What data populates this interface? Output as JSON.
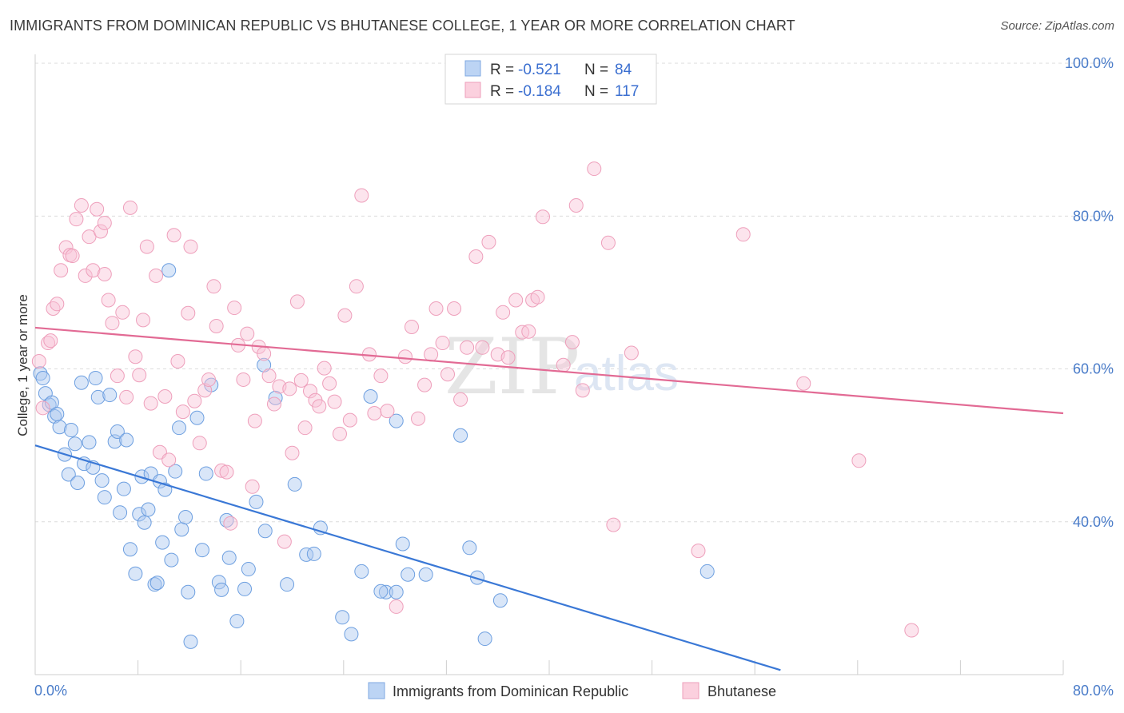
{
  "title": "IMMIGRANTS FROM DOMINICAN REPUBLIC VS BHUTANESE COLLEGE, 1 YEAR OR MORE CORRELATION CHART",
  "source": "Source: ZipAtlas.com",
  "watermark": {
    "zip": "ZIP",
    "atlas": "atlas"
  },
  "colors": {
    "blue": "#6d9fe0",
    "blue_line": "#3a78d6",
    "pink": "#f0a0bc",
    "pink_line": "#e26a94"
  },
  "legend": {
    "r_label": "R =",
    "n_label": "N =",
    "blue": {
      "r": "-0.521",
      "n": "84"
    },
    "pink": {
      "r": "-0.184",
      "n": "117"
    }
  },
  "bottom_legend": {
    "blue_label": "Immigrants from Dominican Republic",
    "pink_label": "Bhutanese"
  },
  "chart_data": {
    "type": "scatter",
    "title": "IMMIGRANTS FROM DOMINICAN REPUBLIC VS BHUTANESE COLLEGE, 1 YEAR OR MORE CORRELATION CHART",
    "xlabel": "",
    "ylabel": "College, 1 year or more",
    "xlim": [
      0,
      80
    ],
    "ylim": [
      20,
      102
    ],
    "x_tick_labels": [
      "0.0%",
      "80.0%"
    ],
    "y_ticks": [
      40,
      60,
      80,
      100
    ],
    "y_tick_labels": [
      "40.0%",
      "60.0%",
      "80.0%",
      "100.0%"
    ],
    "grid": true,
    "legend_position": "top-center",
    "series": [
      {
        "name": "Immigrants from Dominican Republic",
        "color": "#6d9fe0",
        "trend": {
          "x": [
            0,
            58
          ],
          "y": [
            50.0,
            20.6
          ]
        },
        "points": [
          [
            0.4,
            59.4
          ],
          [
            0.6,
            58.8
          ],
          [
            0.8,
            56.8
          ],
          [
            1.1,
            55.3
          ],
          [
            1.3,
            55.6
          ],
          [
            1.5,
            53.8
          ],
          [
            1.7,
            54.1
          ],
          [
            1.9,
            52.4
          ],
          [
            2.3,
            48.8
          ],
          [
            2.6,
            46.2
          ],
          [
            2.8,
            52.0
          ],
          [
            3.1,
            50.2
          ],
          [
            3.3,
            45.1
          ],
          [
            3.6,
            58.2
          ],
          [
            3.8,
            47.6
          ],
          [
            4.2,
            50.4
          ],
          [
            4.5,
            47.1
          ],
          [
            4.7,
            58.8
          ],
          [
            4.9,
            56.3
          ],
          [
            5.2,
            45.4
          ],
          [
            5.4,
            43.2
          ],
          [
            5.8,
            56.6
          ],
          [
            6.2,
            50.5
          ],
          [
            6.4,
            51.8
          ],
          [
            6.6,
            41.2
          ],
          [
            6.9,
            44.3
          ],
          [
            7.1,
            50.7
          ],
          [
            7.4,
            36.4
          ],
          [
            7.8,
            33.2
          ],
          [
            8.1,
            41.0
          ],
          [
            8.3,
            45.9
          ],
          [
            8.5,
            39.9
          ],
          [
            8.8,
            41.6
          ],
          [
            9.0,
            46.3
          ],
          [
            9.3,
            31.8
          ],
          [
            9.5,
            32.0
          ],
          [
            9.7,
            45.3
          ],
          [
            9.9,
            37.3
          ],
          [
            10.1,
            44.2
          ],
          [
            10.6,
            35.0
          ],
          [
            10.9,
            46.6
          ],
          [
            11.2,
            52.3
          ],
          [
            11.4,
            39.0
          ],
          [
            11.7,
            40.6
          ],
          [
            11.9,
            30.8
          ],
          [
            12.1,
            24.3
          ],
          [
            12.6,
            53.6
          ],
          [
            13.0,
            36.3
          ],
          [
            13.3,
            46.3
          ],
          [
            13.7,
            57.9
          ],
          [
            14.3,
            32.1
          ],
          [
            14.5,
            31.1
          ],
          [
            14.9,
            40.2
          ],
          [
            15.1,
            35.3
          ],
          [
            15.7,
            27.0
          ],
          [
            16.3,
            31.2
          ],
          [
            16.6,
            33.8
          ],
          [
            17.2,
            42.6
          ],
          [
            17.9,
            38.8
          ],
          [
            18.7,
            56.2
          ],
          [
            19.6,
            31.8
          ],
          [
            20.2,
            44.9
          ],
          [
            21.1,
            35.7
          ],
          [
            21.7,
            35.8
          ],
          [
            22.2,
            39.2
          ],
          [
            23.9,
            27.5
          ],
          [
            24.6,
            25.3
          ],
          [
            25.4,
            33.5
          ],
          [
            26.1,
            56.4
          ],
          [
            27.3,
            30.8
          ],
          [
            28.1,
            53.2
          ],
          [
            28.6,
            37.1
          ],
          [
            29.0,
            33.1
          ],
          [
            30.4,
            33.1
          ],
          [
            33.1,
            51.3
          ],
          [
            33.8,
            36.6
          ],
          [
            34.4,
            32.7
          ],
          [
            35.0,
            24.7
          ],
          [
            36.2,
            29.7
          ],
          [
            52.3,
            33.5
          ],
          [
            10.4,
            72.9
          ],
          [
            17.8,
            60.5
          ],
          [
            28.1,
            30.8
          ],
          [
            26.9,
            30.9
          ]
        ]
      },
      {
        "name": "Bhutanese",
        "color": "#f0a0bc",
        "trend": {
          "x": [
            0,
            80
          ],
          "y": [
            65.4,
            54.2
          ]
        },
        "points": [
          [
            0.3,
            61.0
          ],
          [
            0.6,
            54.9
          ],
          [
            1.0,
            63.4
          ],
          [
            1.2,
            63.7
          ],
          [
            1.4,
            67.9
          ],
          [
            1.7,
            68.5
          ],
          [
            2.0,
            72.9
          ],
          [
            2.4,
            75.9
          ],
          [
            2.7,
            74.9
          ],
          [
            2.9,
            74.8
          ],
          [
            3.2,
            79.6
          ],
          [
            3.6,
            81.4
          ],
          [
            3.9,
            72.2
          ],
          [
            4.2,
            77.3
          ],
          [
            4.5,
            72.9
          ],
          [
            4.8,
            80.9
          ],
          [
            5.1,
            78.0
          ],
          [
            5.4,
            79.1
          ],
          [
            5.7,
            69.0
          ],
          [
            6.0,
            66.0
          ],
          [
            6.4,
            59.1
          ],
          [
            6.8,
            67.4
          ],
          [
            7.1,
            56.3
          ],
          [
            7.4,
            81.1
          ],
          [
            7.8,
            61.6
          ],
          [
            8.1,
            59.2
          ],
          [
            8.4,
            66.4
          ],
          [
            8.7,
            76.0
          ],
          [
            9.0,
            55.5
          ],
          [
            9.4,
            72.2
          ],
          [
            9.7,
            49.1
          ],
          [
            10.1,
            56.4
          ],
          [
            10.4,
            48.1
          ],
          [
            10.8,
            77.5
          ],
          [
            11.1,
            61.0
          ],
          [
            11.5,
            54.4
          ],
          [
            11.9,
            67.3
          ],
          [
            12.1,
            76.0
          ],
          [
            12.4,
            55.8
          ],
          [
            12.8,
            50.3
          ],
          [
            13.2,
            57.2
          ],
          [
            13.5,
            58.6
          ],
          [
            13.9,
            70.8
          ],
          [
            14.1,
            65.6
          ],
          [
            14.5,
            46.7
          ],
          [
            14.9,
            46.5
          ],
          [
            15.2,
            39.8
          ],
          [
            15.5,
            68.0
          ],
          [
            15.8,
            63.1
          ],
          [
            16.2,
            58.6
          ],
          [
            16.5,
            64.6
          ],
          [
            16.9,
            44.6
          ],
          [
            17.1,
            53.2
          ],
          [
            17.4,
            62.9
          ],
          [
            17.8,
            62.0
          ],
          [
            18.2,
            59.1
          ],
          [
            18.6,
            55.4
          ],
          [
            19.0,
            57.7
          ],
          [
            19.4,
            37.4
          ],
          [
            19.8,
            57.4
          ],
          [
            20.0,
            49.0
          ],
          [
            20.4,
            68.8
          ],
          [
            20.7,
            58.5
          ],
          [
            21.0,
            52.3
          ],
          [
            21.4,
            57.1
          ],
          [
            21.8,
            55.9
          ],
          [
            22.1,
            55.1
          ],
          [
            22.5,
            60.1
          ],
          [
            22.9,
            58.1
          ],
          [
            23.3,
            55.7
          ],
          [
            23.7,
            51.5
          ],
          [
            24.1,
            67.0
          ],
          [
            24.5,
            53.3
          ],
          [
            25.0,
            70.8
          ],
          [
            25.4,
            82.7
          ],
          [
            26.0,
            61.9
          ],
          [
            26.4,
            54.2
          ],
          [
            26.9,
            59.1
          ],
          [
            27.4,
            54.5
          ],
          [
            28.1,
            28.9
          ],
          [
            28.8,
            61.6
          ],
          [
            29.3,
            65.5
          ],
          [
            29.8,
            53.5
          ],
          [
            30.3,
            57.9
          ],
          [
            30.8,
            61.9
          ],
          [
            31.2,
            67.9
          ],
          [
            31.7,
            63.4
          ],
          [
            32.1,
            59.3
          ],
          [
            32.6,
            67.9
          ],
          [
            33.1,
            56.0
          ],
          [
            33.6,
            62.8
          ],
          [
            34.3,
            74.7
          ],
          [
            34.8,
            62.8
          ],
          [
            35.3,
            76.6
          ],
          [
            36.0,
            61.9
          ],
          [
            36.4,
            67.4
          ],
          [
            36.8,
            61.5
          ],
          [
            37.4,
            69.0
          ],
          [
            37.9,
            64.8
          ],
          [
            38.4,
            64.9
          ],
          [
            38.7,
            69.0
          ],
          [
            39.1,
            69.4
          ],
          [
            39.5,
            79.9
          ],
          [
            41.1,
            60.5
          ],
          [
            41.8,
            63.5
          ],
          [
            42.1,
            81.4
          ],
          [
            42.6,
            57.2
          ],
          [
            43.5,
            86.2
          ],
          [
            44.6,
            76.5
          ],
          [
            45.0,
            39.6
          ],
          [
            46.4,
            62.1
          ],
          [
            51.6,
            36.2
          ],
          [
            55.1,
            77.6
          ],
          [
            59.8,
            58.1
          ],
          [
            64.1,
            48.0
          ],
          [
            68.2,
            25.8
          ],
          [
            5.4,
            72.4
          ]
        ]
      }
    ]
  }
}
